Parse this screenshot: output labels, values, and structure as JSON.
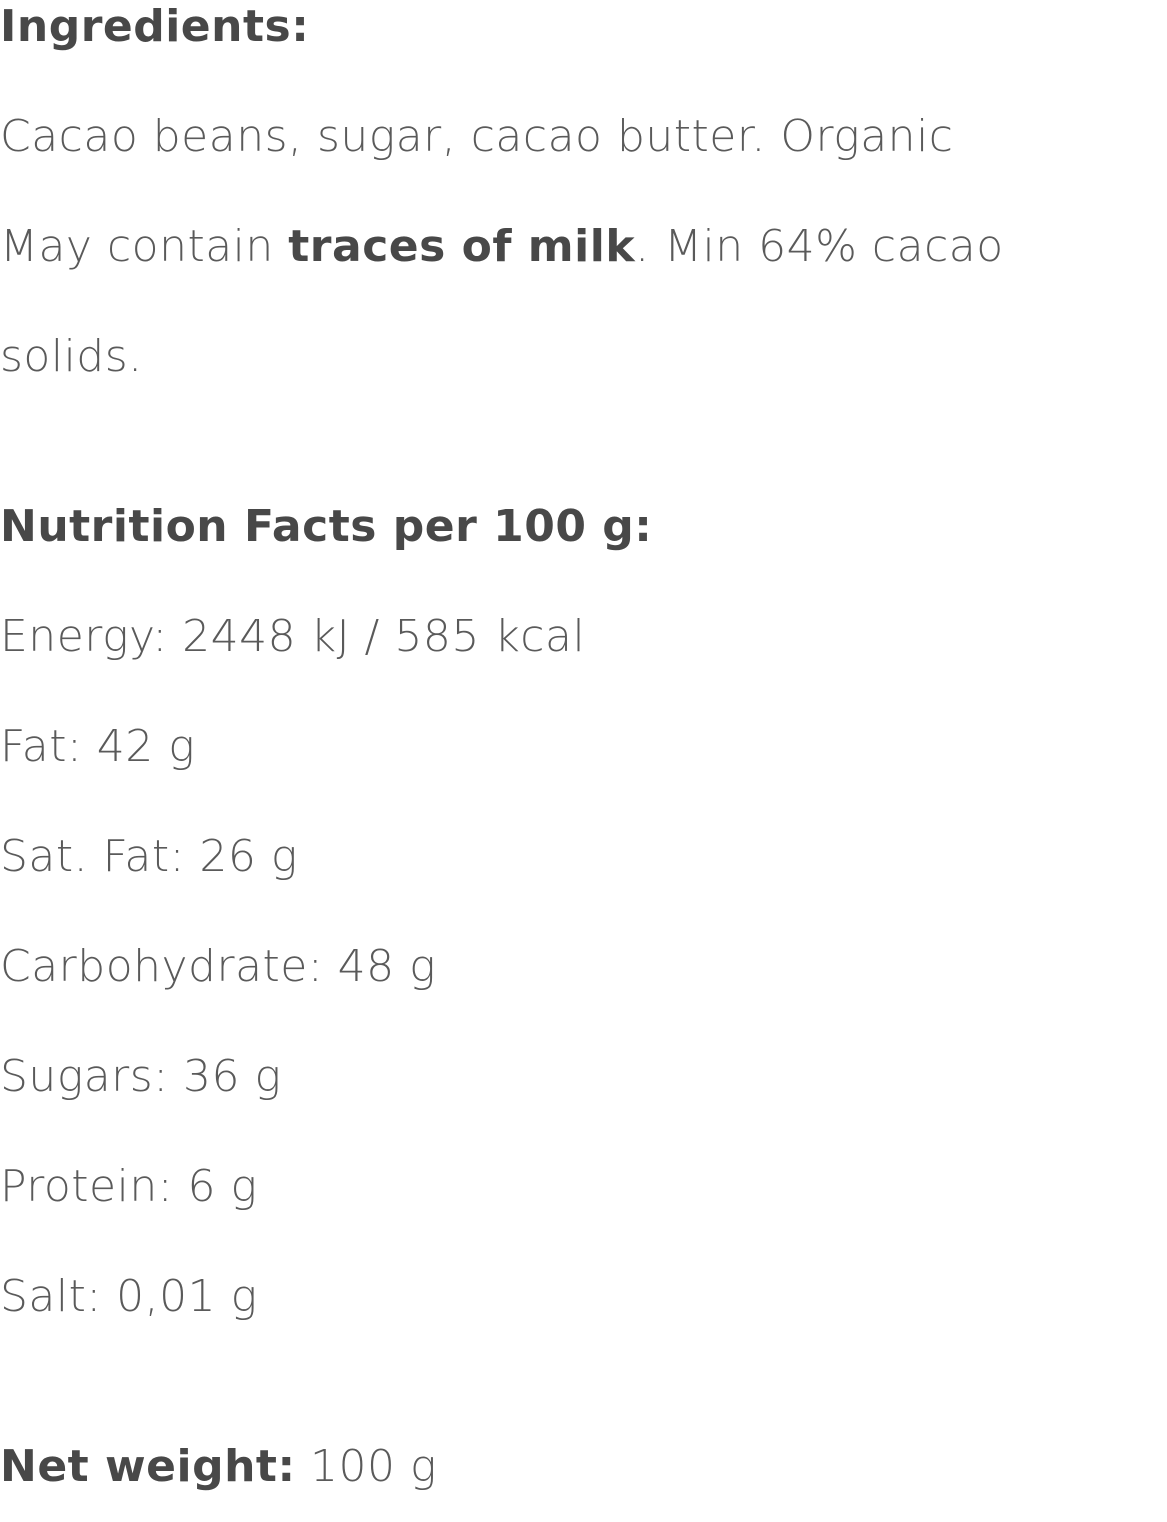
{
  "ingredients": {
    "heading": "Ingredients:",
    "line1": "Cacao beans, sugar, cacao butter. Organic",
    "line2_pre": "May contain ",
    "line2_bold": "traces of milk",
    "line2_post": ". Min 64% cacao",
    "line3": "solids."
  },
  "nutrition": {
    "heading": "Nutrition Facts per 100 g:",
    "items": [
      "Energy: 2448 kJ / 585 kcal",
      "Fat: 42 g",
      "Sat. Fat: 26 g",
      "Carbohydrate: 48 g",
      "Sugars: 36 g",
      "Protein: 6 g",
      "Salt: 0,01 g"
    ]
  },
  "net_weight": {
    "label": "Net weight:",
    "value": " 100 g"
  }
}
